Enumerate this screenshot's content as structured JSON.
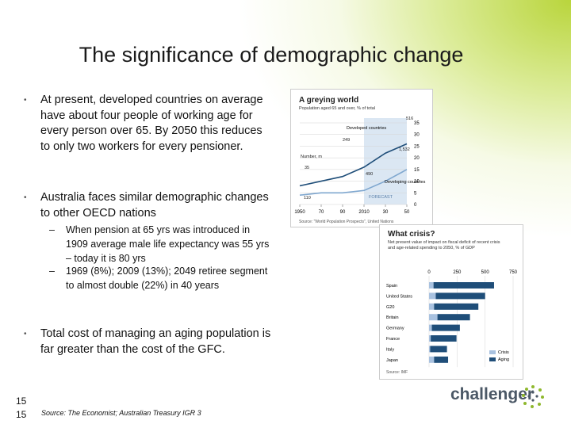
{
  "header": {
    "title": "The significance of demographic change"
  },
  "bullets": [
    {
      "text": "At present, developed countries on average have about four people of working age for every person over 65. By 2050 this reduces to only two workers for every pensioner."
    },
    {
      "text": "Australia faces similar demographic changes to other OECD nations",
      "sub": [
        "When pension at 65 yrs was introduced in 1909 average male life expectancy was 55 yrs – today it is 80 yrs",
        "1969 (8%); 2009 (13%); 2049 retiree segment to almost double (22%) in 40 years"
      ]
    },
    {
      "text": "Total cost of managing an aging population is far greater than the cost of the GFC."
    }
  ],
  "figures": [
    {
      "type": "line",
      "title": "A greying world",
      "subtitle": "Population aged 65 and over, % of total",
      "x": [
        1950,
        1970,
        1990,
        2010,
        2030,
        2050
      ],
      "xlim": [
        1950,
        2050
      ],
      "xticks": [
        1950,
        {
          "value": 1970,
          "label": "70"
        },
        {
          "value": 1990,
          "label": "90"
        },
        2010,
        {
          "value": 2030,
          "label": "30"
        },
        {
          "value": 2050,
          "label": "50"
        }
      ],
      "ylim": [
        0,
        35
      ],
      "yticks": [
        0,
        5,
        10,
        15,
        20,
        25,
        30,
        35
      ],
      "series": [
        {
          "name": "Developed countries",
          "color": "#1f4e79",
          "values": [
            8,
            10,
            12,
            16,
            22,
            26
          ]
        },
        {
          "name": "Developing countries",
          "color": "#7fa7cf",
          "values": [
            4,
            5,
            5,
            6,
            10,
            15
          ]
        }
      ],
      "annotations": [
        "516",
        "249",
        "1,532",
        "Number, m",
        "35",
        "490",
        "110",
        "FORECAST"
      ],
      "source": "Source: \"World Population Prospects\", United Nations"
    },
    {
      "type": "bar",
      "title": "What crisis?",
      "subtitle": "Net present value of impact on fiscal deficit of recent crisis and age-related spending to 2050, % of GDP",
      "categories": [
        "Spain",
        "United States",
        "G20",
        "Britain",
        "Germany",
        "France",
        "Italy",
        "Japan"
      ],
      "xlim": [
        0,
        750
      ],
      "xticks": [
        0,
        250,
        500,
        750
      ],
      "series": [
        {
          "name": "Crisis",
          "color": "#a9c2e0",
          "values": [
            40,
            60,
            45,
            75,
            25,
            15,
            10,
            45
          ]
        },
        {
          "name": "Aging",
          "color": "#1f4e79",
          "values": [
            540,
            440,
            395,
            290,
            250,
            230,
            150,
            125
          ]
        }
      ],
      "source": "Source: IMF"
    }
  ],
  "footer": {
    "page_numbers": [
      "15",
      "15"
    ],
    "source": "Source: The Economist; Australian Treasury IGR 3",
    "logo": "challenger"
  }
}
